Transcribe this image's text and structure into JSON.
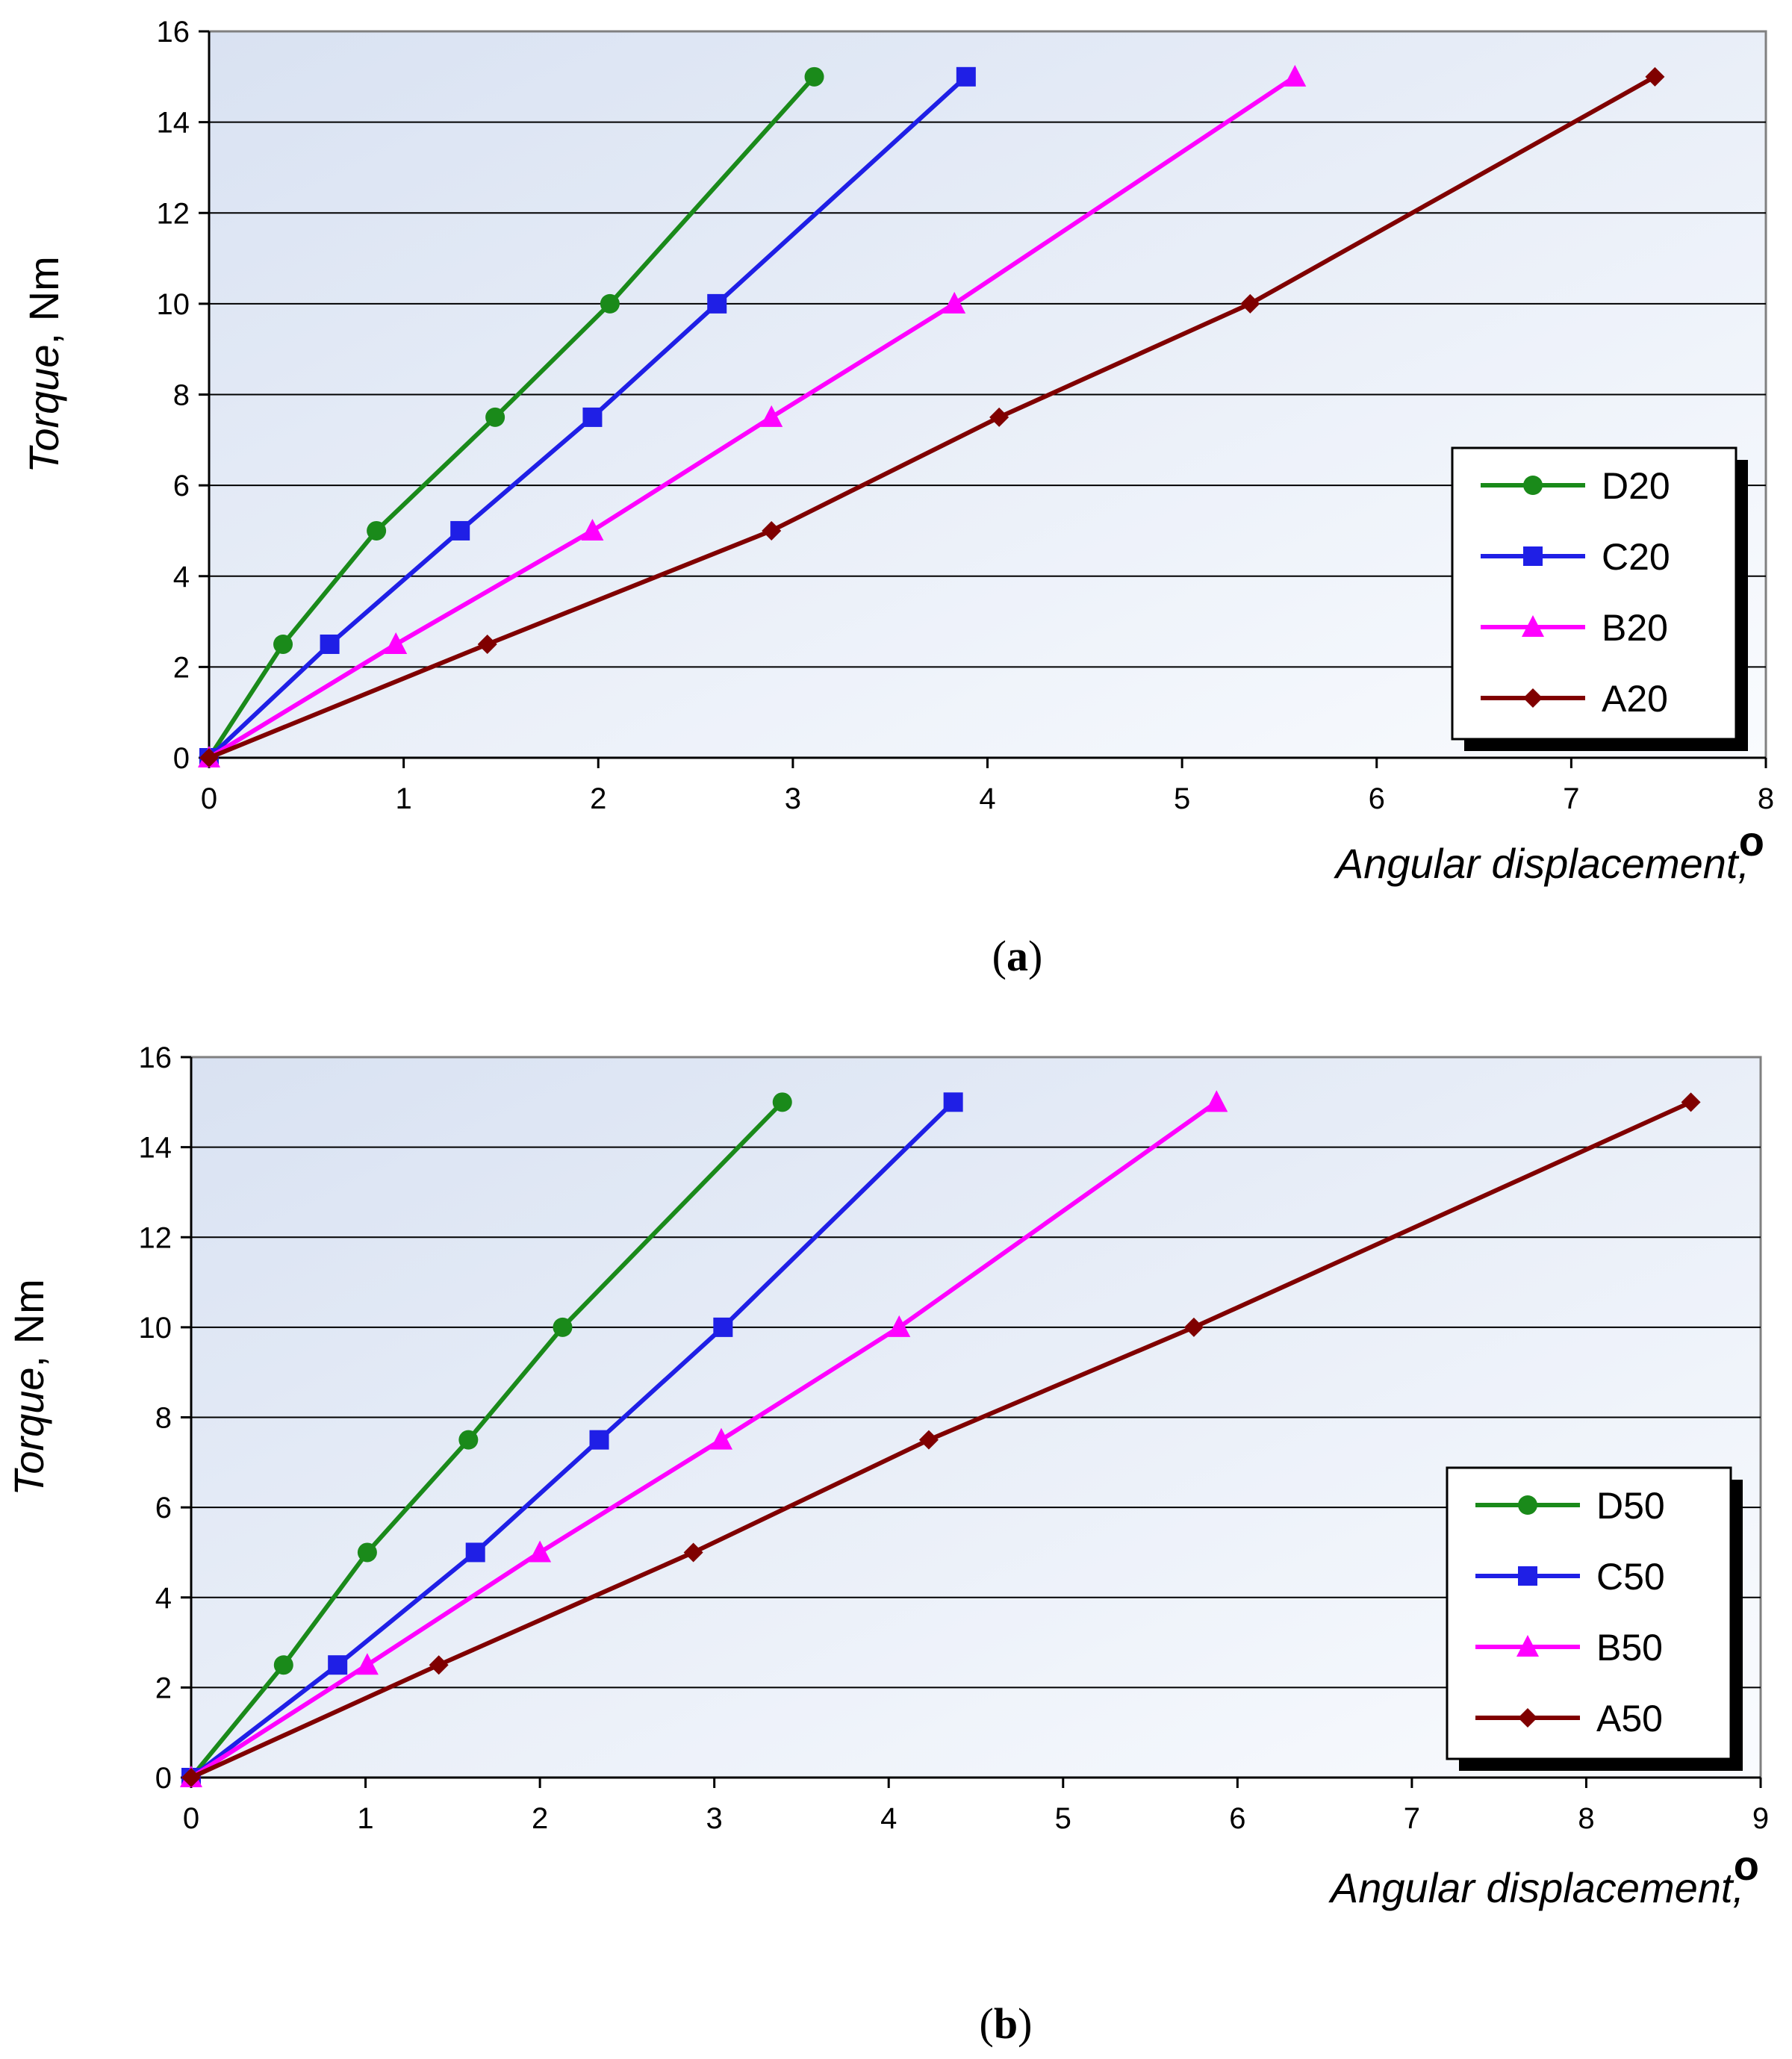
{
  "chart_data": [
    {
      "type": "line",
      "panel_label": "a",
      "xlabel": "Angular displacement, ",
      "xlabel_unit": "o",
      "ylabel": "Torque",
      "ylabel_unit": ", Nm",
      "xlim": [
        0,
        8
      ],
      "ylim": [
        0,
        16
      ],
      "xticks": [
        "0",
        "1",
        "2",
        "3",
        "4",
        "5",
        "6",
        "7",
        "8"
      ],
      "yticks": [
        "0",
        "2",
        "4",
        "6",
        "8",
        "10",
        "12",
        "14",
        "16"
      ],
      "grid": "horizontal",
      "legend_position": "bottom-right",
      "series": [
        {
          "name": "D20",
          "color": "#1a8a1a",
          "marker": "circle",
          "points": [
            [
              0,
              0
            ],
            [
              0.38,
              2.5
            ],
            [
              0.86,
              5
            ],
            [
              1.47,
              7.5
            ],
            [
              2.06,
              10
            ],
            [
              3.11,
              15
            ]
          ]
        },
        {
          "name": "C20",
          "color": "#1f1fe6",
          "marker": "square",
          "points": [
            [
              0,
              0
            ],
            [
              0.62,
              2.5
            ],
            [
              1.29,
              5
            ],
            [
              1.97,
              7.5
            ],
            [
              2.61,
              10
            ],
            [
              3.89,
              15
            ]
          ]
        },
        {
          "name": "B20",
          "color": "#ff00ff",
          "marker": "triangle",
          "points": [
            [
              0,
              0
            ],
            [
              0.96,
              2.5
            ],
            [
              1.97,
              5
            ],
            [
              2.89,
              7.5
            ],
            [
              3.83,
              10
            ],
            [
              5.58,
              15
            ]
          ]
        },
        {
          "name": "A20",
          "color": "#800000",
          "marker": "diamond",
          "points": [
            [
              0,
              0
            ],
            [
              1.43,
              2.5
            ],
            [
              2.89,
              5
            ],
            [
              4.06,
              7.5
            ],
            [
              5.35,
              10
            ],
            [
              7.43,
              15
            ]
          ]
        }
      ]
    },
    {
      "type": "line",
      "panel_label": "b",
      "xlabel": "Angular displacement, ",
      "xlabel_unit": "o",
      "ylabel": "Torque",
      "ylabel_unit": ", Nm",
      "xlim": [
        0,
        9
      ],
      "ylim": [
        0,
        16
      ],
      "xticks": [
        "0",
        "1",
        "2",
        "3",
        "4",
        "5",
        "6",
        "7",
        "8",
        "9"
      ],
      "yticks": [
        "0",
        "2",
        "4",
        "6",
        "8",
        "10",
        "12",
        "14",
        "16"
      ],
      "grid": "horizontal",
      "legend_position": "bottom-right",
      "series": [
        {
          "name": "D50",
          "color": "#1a8a1a",
          "marker": "circle",
          "points": [
            [
              0,
              0
            ],
            [
              0.53,
              2.5
            ],
            [
              1.01,
              5
            ],
            [
              1.59,
              7.5
            ],
            [
              2.13,
              10
            ],
            [
              3.39,
              15
            ]
          ]
        },
        {
          "name": "C50",
          "color": "#1f1fe6",
          "marker": "square",
          "points": [
            [
              0,
              0
            ],
            [
              0.84,
              2.5
            ],
            [
              1.63,
              5
            ],
            [
              2.34,
              7.5
            ],
            [
              3.05,
              10
            ],
            [
              4.37,
              15
            ]
          ]
        },
        {
          "name": "B50",
          "color": "#ff00ff",
          "marker": "triangle",
          "points": [
            [
              0,
              0
            ],
            [
              1.01,
              2.5
            ],
            [
              2.0,
              5
            ],
            [
              3.04,
              7.5
            ],
            [
              4.06,
              10
            ],
            [
              5.88,
              15
            ]
          ]
        },
        {
          "name": "A50",
          "color": "#800000",
          "marker": "diamond",
          "points": [
            [
              0,
              0
            ],
            [
              1.42,
              2.5
            ],
            [
              2.88,
              5
            ],
            [
              4.23,
              7.5
            ],
            [
              5.75,
              10
            ],
            [
              8.6,
              15
            ]
          ]
        }
      ]
    }
  ]
}
